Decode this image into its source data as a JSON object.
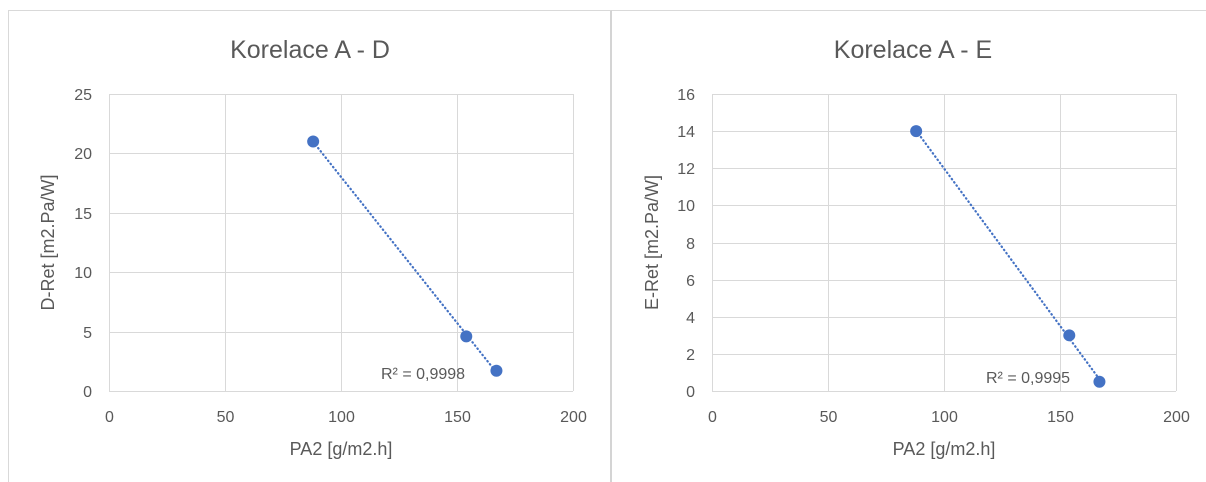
{
  "chart_data": [
    {
      "type": "scatter",
      "title": "Korelace A - D",
      "xlabel": "PA2 [g/m2.h]",
      "ylabel": "D-Ret [m2.Pa/W]",
      "xlim": [
        0,
        200
      ],
      "ylim": [
        0,
        25
      ],
      "xticks": [
        0,
        50,
        100,
        150,
        200
      ],
      "yticks": [
        0,
        5,
        10,
        15,
        20,
        25
      ],
      "grid": "both",
      "legend": "none",
      "series": [
        {
          "x": [
            88,
            154,
            167
          ],
          "y": [
            21,
            4.6,
            1.7
          ],
          "color": "#4472C4",
          "trendline": "linear"
        }
      ],
      "annotations": [
        "R² = 0,9998"
      ]
    },
    {
      "type": "scatter",
      "title": "Korelace A - E",
      "xlabel": "PA2 [g/m2.h]",
      "ylabel": "E-Ret [m2.Pa/W]",
      "xlim": [
        0,
        200
      ],
      "ylim": [
        0,
        16
      ],
      "xticks": [
        0,
        50,
        100,
        150,
        200
      ],
      "yticks": [
        0,
        2,
        4,
        6,
        8,
        10,
        12,
        14,
        16
      ],
      "grid": "both",
      "legend": "none",
      "series": [
        {
          "x": [
            88,
            154,
            167
          ],
          "y": [
            14,
            3,
            0.5
          ],
          "color": "#4472C4",
          "trendline": "linear"
        }
      ],
      "annotations": [
        "R² = 0,9995"
      ]
    }
  ]
}
